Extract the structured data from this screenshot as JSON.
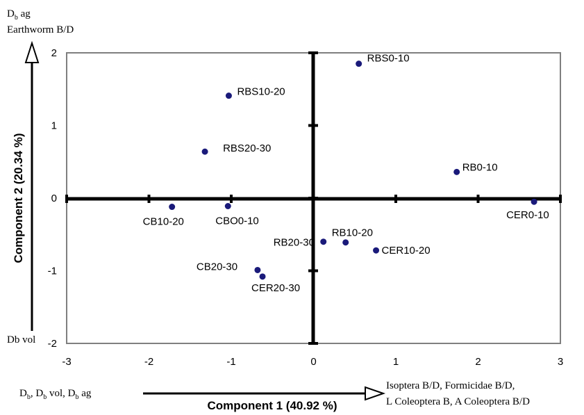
{
  "chart_data": {
    "type": "scatter",
    "title": "",
    "xlabel": "Component 1 (40.92 %)",
    "ylabel": "Component 2 (20.34 %)",
    "xlim": [
      -3,
      3
    ],
    "ylim": [
      -2,
      2
    ],
    "x_ticks": [
      -3,
      -2,
      -1,
      0,
      1,
      2,
      3
    ],
    "y_ticks": [
      -2,
      -1,
      0,
      1,
      2
    ],
    "grid": false,
    "marker_color": "#1a1a7a",
    "points": [
      {
        "label": "RBS0-10",
        "x": 0.55,
        "y": 1.85
      },
      {
        "label": "RBS10-20",
        "x": -1.03,
        "y": 1.41
      },
      {
        "label": "RBS20-30",
        "x": -1.32,
        "y": 0.64
      },
      {
        "label": "RB0-10",
        "x": 1.74,
        "y": 0.36
      },
      {
        "label": "CER0-10",
        "x": 2.68,
        "y": -0.05
      },
      {
        "label": "CB10-20",
        "x": -1.72,
        "y": -0.12
      },
      {
        "label": "CBO0-10",
        "x": -1.04,
        "y": -0.11
      },
      {
        "label": "RB20-30",
        "x": 0.12,
        "y": -0.6
      },
      {
        "label": "RB10-20",
        "x": 0.39,
        "y": -0.61
      },
      {
        "label": "CER10-20",
        "x": 0.76,
        "y": -0.72
      },
      {
        "label": "CB20-30",
        "x": -0.68,
        "y": -0.99
      },
      {
        "label": "CER20-30",
        "x": -0.62,
        "y": -1.08
      }
    ],
    "annotations": {
      "y_top_line1_main": "D",
      "y_top_line1_sub": "b",
      "y_top_line1_rest": " ag",
      "y_top_line2": "Earthworm B/D",
      "y_bottom": "Db vol",
      "x_left": [
        "D",
        "b",
        ", D",
        "b",
        " vol, D",
        "b",
        " ag"
      ],
      "x_right_line1": "Isoptera B/D, Formicidae B/D,",
      "x_right_line2": "L Coleoptera B, A Coleoptera B/D"
    }
  }
}
